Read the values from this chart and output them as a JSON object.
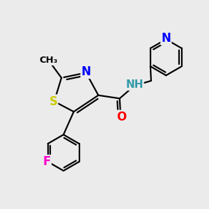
{
  "background_color": "#ebebeb",
  "bond_color": "#000000",
  "bond_width": 1.6,
  "atom_colors": {
    "S": "#cccc00",
    "N": "#0000ff",
    "O": "#ff0000",
    "F": "#ff00cc",
    "NH": "#3399aa"
  },
  "figsize": [
    3.0,
    3.0
  ],
  "dpi": 100,
  "xlim": [
    0,
    10
  ],
  "ylim": [
    0,
    10
  ]
}
